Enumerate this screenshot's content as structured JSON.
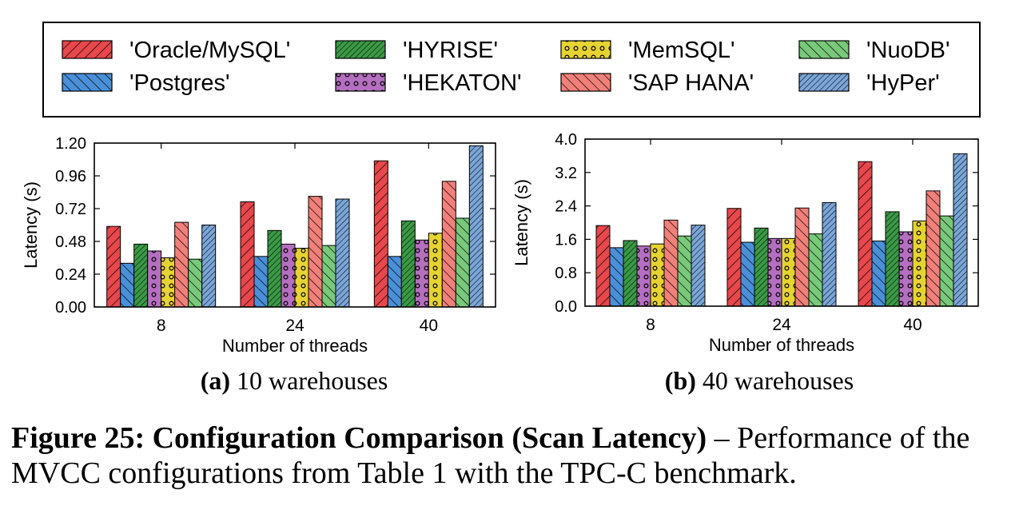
{
  "legend": {
    "entries": [
      "'Oracle/MySQL'",
      "'HYRISE'",
      "'MemSQL'",
      "'NuoDB'",
      "'Postgres'",
      "'HEKATON'",
      "'SAP HANA'",
      "'HyPer'"
    ]
  },
  "colors": {
    "Oracle/MySQL": "#e8474b",
    "Postgres": "#4a90d9",
    "HYRISE": "#3a9a45",
    "HEKATON": "#b56fc0",
    "MemSQL": "#e6d331",
    "SAP HANA": "#f2807a",
    "NuoDB": "#79c97a",
    "HyPer": "#7aa6d9"
  },
  "chart_data": [
    {
      "type": "bar",
      "subtitle_label": "(a)",
      "subtitle_text": "10 warehouses",
      "xlabel": "Number of threads",
      "ylabel": "Latency (s)",
      "categories": [
        "8",
        "24",
        "40"
      ],
      "ylim": [
        0,
        1.2
      ],
      "yticks": [
        "0.00",
        "0.24",
        "0.48",
        "0.72",
        "0.96",
        "1.20"
      ],
      "series": [
        {
          "name": "Oracle/MySQL",
          "values": [
            0.59,
            0.77,
            1.07
          ]
        },
        {
          "name": "Postgres",
          "values": [
            0.32,
            0.37,
            0.37
          ]
        },
        {
          "name": "HYRISE",
          "values": [
            0.46,
            0.56,
            0.63
          ]
        },
        {
          "name": "HEKATON",
          "values": [
            0.41,
            0.46,
            0.49
          ]
        },
        {
          "name": "MemSQL",
          "values": [
            0.36,
            0.43,
            0.54
          ]
        },
        {
          "name": "SAP HANA",
          "values": [
            0.62,
            0.81,
            0.92
          ]
        },
        {
          "name": "NuoDB",
          "values": [
            0.35,
            0.45,
            0.65
          ]
        },
        {
          "name": "HyPer",
          "values": [
            0.6,
            0.79,
            1.18
          ]
        }
      ]
    },
    {
      "type": "bar",
      "subtitle_label": "(b)",
      "subtitle_text": "40 warehouses",
      "xlabel": "Number of threads",
      "ylabel": "Latency (s)",
      "categories": [
        "8",
        "24",
        "40"
      ],
      "ylim": [
        0,
        4.0
      ],
      "yticks": [
        "0.0",
        "0.8",
        "1.6",
        "2.4",
        "3.2",
        "4.0"
      ],
      "series": [
        {
          "name": "Oracle/MySQL",
          "values": [
            1.93,
            2.34,
            3.46
          ]
        },
        {
          "name": "Postgres",
          "values": [
            1.4,
            1.53,
            1.56
          ]
        },
        {
          "name": "HYRISE",
          "values": [
            1.57,
            1.87,
            2.26
          ]
        },
        {
          "name": "HEKATON",
          "values": [
            1.44,
            1.62,
            1.78
          ]
        },
        {
          "name": "MemSQL",
          "values": [
            1.49,
            1.62,
            2.04
          ]
        },
        {
          "name": "SAP HANA",
          "values": [
            2.06,
            2.35,
            2.76
          ]
        },
        {
          "name": "NuoDB",
          "values": [
            1.68,
            1.73,
            2.16
          ]
        },
        {
          "name": "HyPer",
          "values": [
            1.94,
            2.48,
            3.65
          ]
        }
      ]
    }
  ],
  "caption": {
    "label": "Figure 25:",
    "title": "Configuration Comparison (Scan Latency)",
    "text": " – Performance of the MVCC configurations from Table 1 with the TPC-C benchmark."
  }
}
